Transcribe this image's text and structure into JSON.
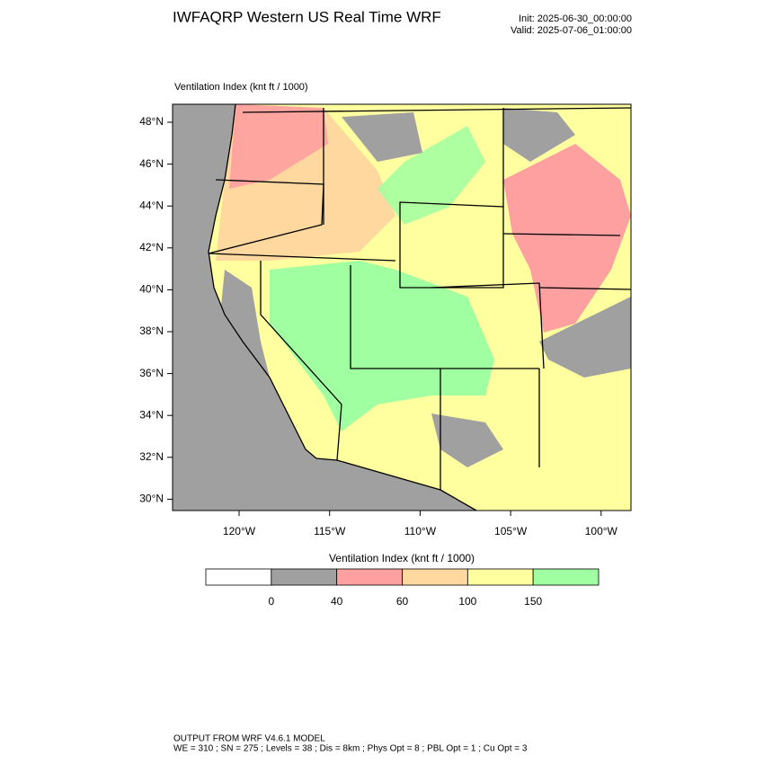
{
  "header": {
    "title": "IWFAQRP Western US Real Time WRF",
    "init": "Init: 2025-06-30_00:00:00",
    "valid": "Valid: 2025-07-06_01:00:00"
  },
  "map": {
    "title": "Ventilation Index   (knt ft / 1000)",
    "lat_labels": [
      "48°N",
      "46°N",
      "44°N",
      "42°N",
      "40°N",
      "38°N",
      "36°N",
      "34°N",
      "32°N",
      "30°N"
    ],
    "lon_labels": [
      "120°W",
      "115°W",
      "110°W",
      "105°W",
      "100°W"
    ]
  },
  "colorbar": {
    "title": "Ventilation Index  (knt ft / 1000)",
    "labels": [
      "0",
      "40",
      "60",
      "100",
      "150"
    ],
    "colors": [
      "#ffffff",
      "#a0a0a0",
      "#ffa0a0",
      "#ffd8a0",
      "#ffffa0",
      "#a0ffa0"
    ]
  },
  "footer": {
    "line1": "OUTPUT FROM WRF V4.6.1 MODEL",
    "line2": "WE = 310 ; SN = 275 ; Levels = 38 ; Dis = 8km ; Phys Opt = 8 ; PBL Opt = 1 ; Cu Opt = 3"
  }
}
